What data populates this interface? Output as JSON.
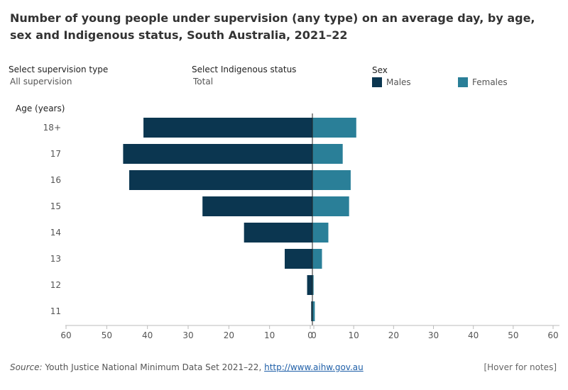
{
  "title": "Number of young people under supervision (any type) on an average day, by age, sex and Indigenous status, South Australia, 2021–22",
  "controls": {
    "supervision_label": "Select supervision type",
    "supervision_value": "All supervision",
    "indigenous_label": "Select Indigenous status",
    "indigenous_value": "Total"
  },
  "legend": {
    "title": "Sex",
    "males": "Males",
    "females": "Females"
  },
  "colors": {
    "males": "#0b3650",
    "females": "#2a7f98"
  },
  "footer": {
    "source_label": "Source:",
    "source_text": "Youth Justice National Minimum Data Set 2021–22,",
    "source_link": "http://www.aihw.gov.au",
    "notes": "[Hover for notes]"
  },
  "chart_data": {
    "type": "bar",
    "orientation": "horizontal-diverging",
    "ylabel": "Age (years)",
    "categories": [
      "18+",
      "17",
      "16",
      "15",
      "14",
      "13",
      "12",
      "11"
    ],
    "series": [
      {
        "name": "Males",
        "values": [
          41.5,
          46.5,
          45,
          27,
          16.8,
          6.8,
          1.3,
          0.3
        ]
      },
      {
        "name": "Females",
        "values": [
          11,
          7.6,
          9.6,
          9.2,
          4,
          2.4,
          0.3,
          0.6
        ]
      }
    ],
    "xlim": [
      -60,
      60
    ],
    "xticks_left": [
      "60",
      "50",
      "40",
      "30",
      "20",
      "10",
      "0"
    ],
    "xticks_right": [
      "0",
      "10",
      "20",
      "30",
      "40",
      "50",
      "60"
    ]
  }
}
